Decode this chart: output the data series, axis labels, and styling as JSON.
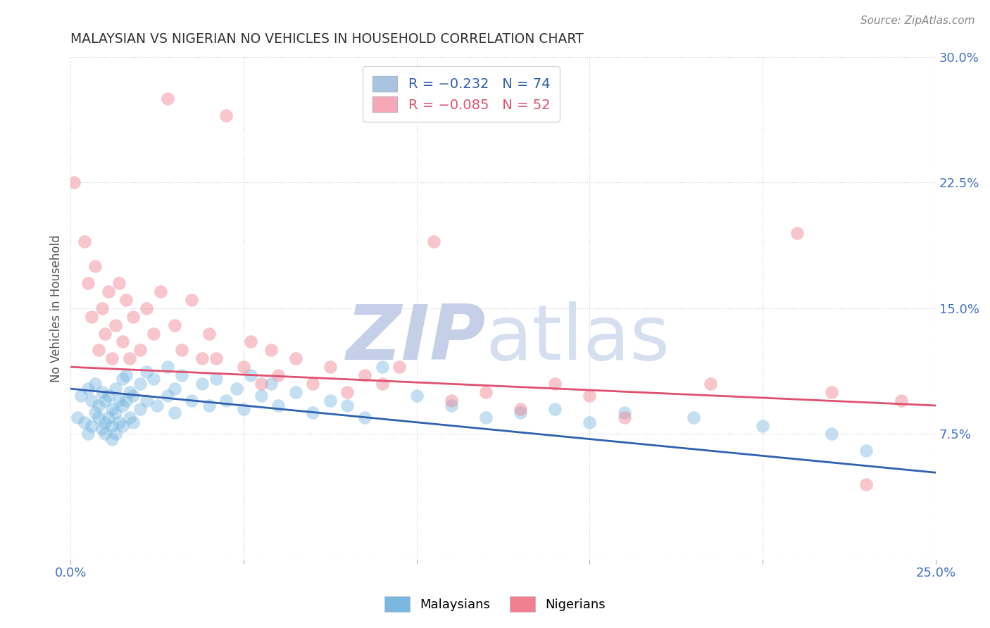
{
  "title": "MALAYSIAN VS NIGERIAN NO VEHICLES IN HOUSEHOLD CORRELATION CHART",
  "source": "Source: ZipAtlas.com",
  "ylabel": "No Vehicles in Household",
  "xlim": [
    0.0,
    25.0
  ],
  "ylim": [
    0.0,
    30.0
  ],
  "yticks": [
    0.0,
    7.5,
    15.0,
    22.5,
    30.0
  ],
  "ytick_labels": [
    "",
    "7.5%",
    "15.0%",
    "22.5%",
    "30.0%"
  ],
  "xticks": [
    0.0,
    5.0,
    10.0,
    15.0,
    20.0,
    25.0
  ],
  "xtick_labels": [
    "0.0%",
    "",
    "",
    "",
    "",
    "25.0%"
  ],
  "legend_label_1": "R = −0.232   N = 74",
  "legend_label_2": "R = −0.085   N = 52",
  "legend_color_1": "#a8c4e0",
  "legend_color_2": "#f4a8b8",
  "malaysian_color": "#7ab8e0",
  "nigerian_color": "#f08090",
  "trendline_malaysian_color": "#3060b0",
  "trendline_nigerian_color": "#e05070",
  "trendline_malaysian": [
    0.0,
    10.2,
    25.0,
    5.2
  ],
  "trendline_nigerian": [
    0.0,
    11.5,
    25.0,
    9.2
  ],
  "background_color": "#ffffff",
  "grid_color": "#cccccc",
  "title_color": "#333333",
  "axis_label_color": "#555555",
  "tick_color": "#4472c4",
  "malaysian_points": [
    [
      0.2,
      8.5
    ],
    [
      0.3,
      9.8
    ],
    [
      0.4,
      8.2
    ],
    [
      0.5,
      10.2
    ],
    [
      0.5,
      7.5
    ],
    [
      0.6,
      9.5
    ],
    [
      0.6,
      8.0
    ],
    [
      0.7,
      10.5
    ],
    [
      0.7,
      8.8
    ],
    [
      0.8,
      9.2
    ],
    [
      0.8,
      8.5
    ],
    [
      0.9,
      10.0
    ],
    [
      0.9,
      7.8
    ],
    [
      1.0,
      9.5
    ],
    [
      1.0,
      8.2
    ],
    [
      1.0,
      7.5
    ],
    [
      1.1,
      9.8
    ],
    [
      1.1,
      8.5
    ],
    [
      1.2,
      9.0
    ],
    [
      1.2,
      8.0
    ],
    [
      1.2,
      7.2
    ],
    [
      1.3,
      10.2
    ],
    [
      1.3,
      8.8
    ],
    [
      1.3,
      7.5
    ],
    [
      1.4,
      9.5
    ],
    [
      1.4,
      8.2
    ],
    [
      1.5,
      10.8
    ],
    [
      1.5,
      9.2
    ],
    [
      1.5,
      8.0
    ],
    [
      1.6,
      11.0
    ],
    [
      1.6,
      9.5
    ],
    [
      1.7,
      10.0
    ],
    [
      1.7,
      8.5
    ],
    [
      1.8,
      9.8
    ],
    [
      1.8,
      8.2
    ],
    [
      2.0,
      10.5
    ],
    [
      2.0,
      9.0
    ],
    [
      2.2,
      11.2
    ],
    [
      2.2,
      9.5
    ],
    [
      2.4,
      10.8
    ],
    [
      2.5,
      9.2
    ],
    [
      2.8,
      11.5
    ],
    [
      2.8,
      9.8
    ],
    [
      3.0,
      10.2
    ],
    [
      3.0,
      8.8
    ],
    [
      3.2,
      11.0
    ],
    [
      3.5,
      9.5
    ],
    [
      3.8,
      10.5
    ],
    [
      4.0,
      9.2
    ],
    [
      4.2,
      10.8
    ],
    [
      4.5,
      9.5
    ],
    [
      4.8,
      10.2
    ],
    [
      5.0,
      9.0
    ],
    [
      5.2,
      11.0
    ],
    [
      5.5,
      9.8
    ],
    [
      5.8,
      10.5
    ],
    [
      6.0,
      9.2
    ],
    [
      6.5,
      10.0
    ],
    [
      7.0,
      8.8
    ],
    [
      7.5,
      9.5
    ],
    [
      8.0,
      9.2
    ],
    [
      8.5,
      8.5
    ],
    [
      9.0,
      11.5
    ],
    [
      10.0,
      9.8
    ],
    [
      11.0,
      9.2
    ],
    [
      12.0,
      8.5
    ],
    [
      13.0,
      8.8
    ],
    [
      14.0,
      9.0
    ],
    [
      15.0,
      8.2
    ],
    [
      16.0,
      8.8
    ],
    [
      18.0,
      8.5
    ],
    [
      20.0,
      8.0
    ],
    [
      22.0,
      7.5
    ],
    [
      23.0,
      6.5
    ]
  ],
  "nigerian_points": [
    [
      0.1,
      22.5
    ],
    [
      0.4,
      19.0
    ],
    [
      0.5,
      16.5
    ],
    [
      0.6,
      14.5
    ],
    [
      0.7,
      17.5
    ],
    [
      0.8,
      12.5
    ],
    [
      0.9,
      15.0
    ],
    [
      1.0,
      13.5
    ],
    [
      1.1,
      16.0
    ],
    [
      1.2,
      12.0
    ],
    [
      1.3,
      14.0
    ],
    [
      1.4,
      16.5
    ],
    [
      1.5,
      13.0
    ],
    [
      1.6,
      15.5
    ],
    [
      1.7,
      12.0
    ],
    [
      1.8,
      14.5
    ],
    [
      2.0,
      12.5
    ],
    [
      2.2,
      15.0
    ],
    [
      2.4,
      13.5
    ],
    [
      2.6,
      16.0
    ],
    [
      2.8,
      27.5
    ],
    [
      3.0,
      14.0
    ],
    [
      3.2,
      12.5
    ],
    [
      3.5,
      15.5
    ],
    [
      3.8,
      12.0
    ],
    [
      4.0,
      13.5
    ],
    [
      4.2,
      12.0
    ],
    [
      4.5,
      26.5
    ],
    [
      5.0,
      11.5
    ],
    [
      5.2,
      13.0
    ],
    [
      5.5,
      10.5
    ],
    [
      5.8,
      12.5
    ],
    [
      6.0,
      11.0
    ],
    [
      6.5,
      12.0
    ],
    [
      7.0,
      10.5
    ],
    [
      7.5,
      11.5
    ],
    [
      8.0,
      10.0
    ],
    [
      8.5,
      11.0
    ],
    [
      9.0,
      10.5
    ],
    [
      9.5,
      11.5
    ],
    [
      10.5,
      19.0
    ],
    [
      11.0,
      9.5
    ],
    [
      12.0,
      10.0
    ],
    [
      13.0,
      9.0
    ],
    [
      14.0,
      10.5
    ],
    [
      15.0,
      9.8
    ],
    [
      16.0,
      8.5
    ],
    [
      18.5,
      10.5
    ],
    [
      21.0,
      19.5
    ],
    [
      22.0,
      10.0
    ],
    [
      23.0,
      4.5
    ],
    [
      24.0,
      9.5
    ]
  ]
}
